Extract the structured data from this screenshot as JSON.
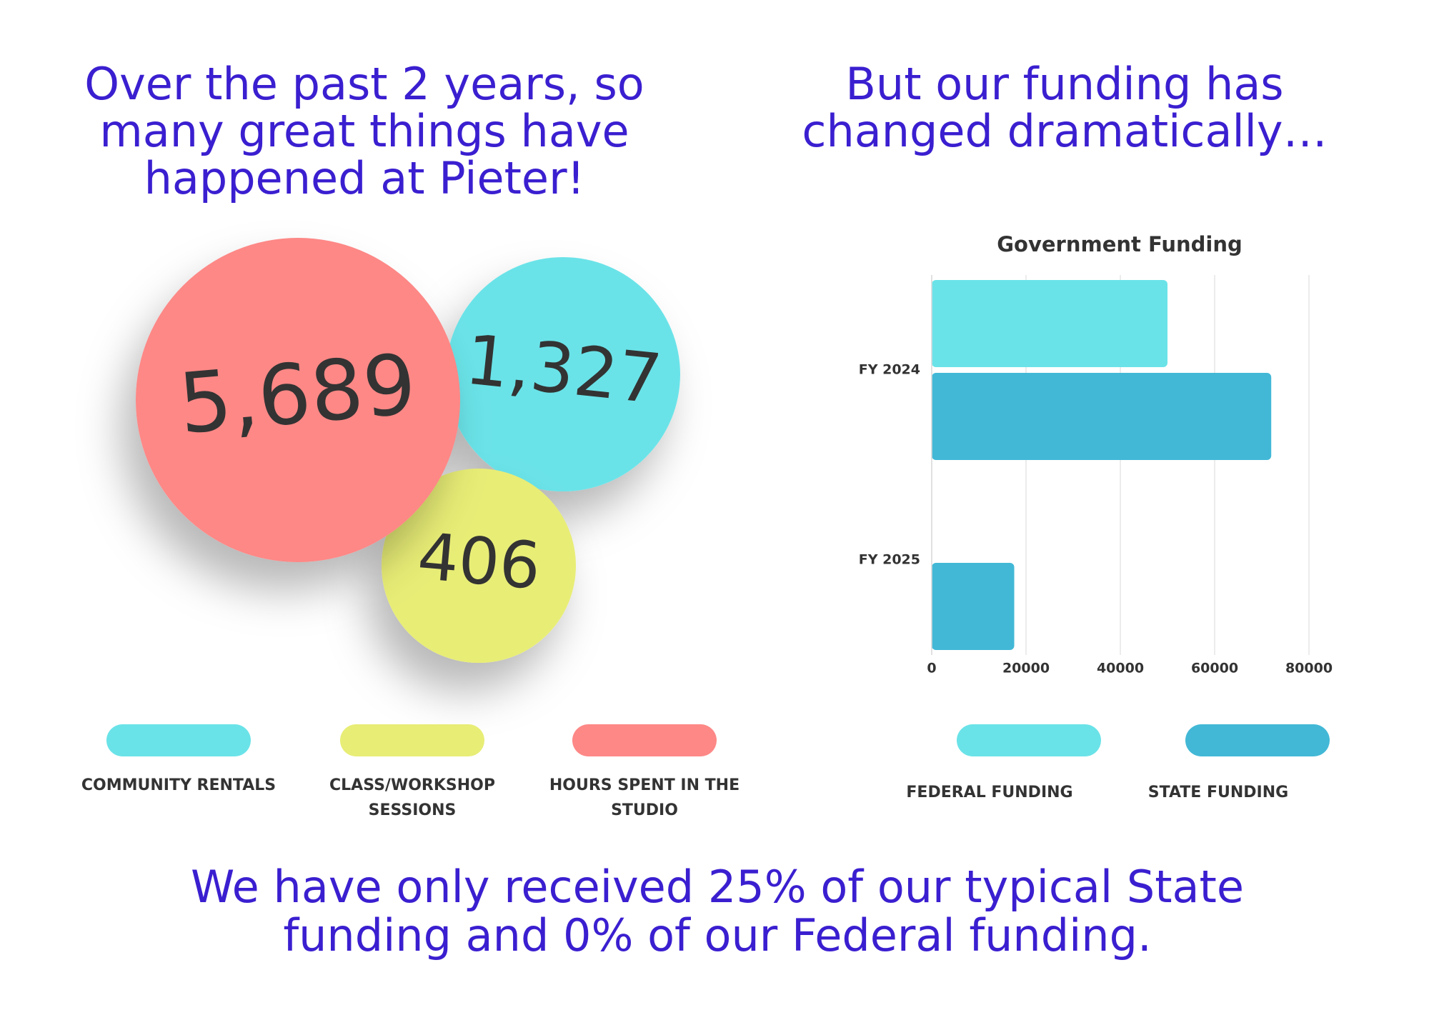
{
  "headings": {
    "left": [
      "Over the past 2 years, so",
      "many great things have",
      "happened at Pieter!"
    ],
    "right": [
      "But our funding has",
      "changed dramatically…"
    ]
  },
  "stats": [
    {
      "value": "1,327",
      "color": "#6ae3e8"
    },
    {
      "value": "406",
      "color": "#e8ed76"
    },
    {
      "value": "5,689",
      "color": "#fd8886"
    }
  ],
  "legend": [
    {
      "label": [
        "COMMUNITY RENTALS"
      ],
      "color": "#6ae3e8"
    },
    {
      "label": [
        "CLASS/WORKSHOP",
        "SESSIONS"
      ],
      "color": "#e8ed76"
    },
    {
      "label": [
        "HOURS SPENT IN THE",
        "STUDIO"
      ],
      "color": "#fd8886"
    }
  ],
  "chart_data": {
    "type": "bar",
    "orientation": "horizontal",
    "title": "Government Funding",
    "categories": [
      "FY 2024",
      "FY 2025"
    ],
    "series": [
      {
        "name": "FEDERAL FUNDING",
        "color": "#6ae3e8",
        "values": [
          50000,
          0
        ]
      },
      {
        "name": "STATE FUNDING",
        "color": "#42b8d6",
        "values": [
          72000,
          17500
        ]
      }
    ],
    "xlim": [
      0,
      80000
    ],
    "xticks": [
      0,
      20000,
      40000,
      60000,
      80000
    ],
    "grid": true
  },
  "footer": [
    "We have only received 25% of our typical State",
    "funding and 0% of our Federal funding."
  ]
}
